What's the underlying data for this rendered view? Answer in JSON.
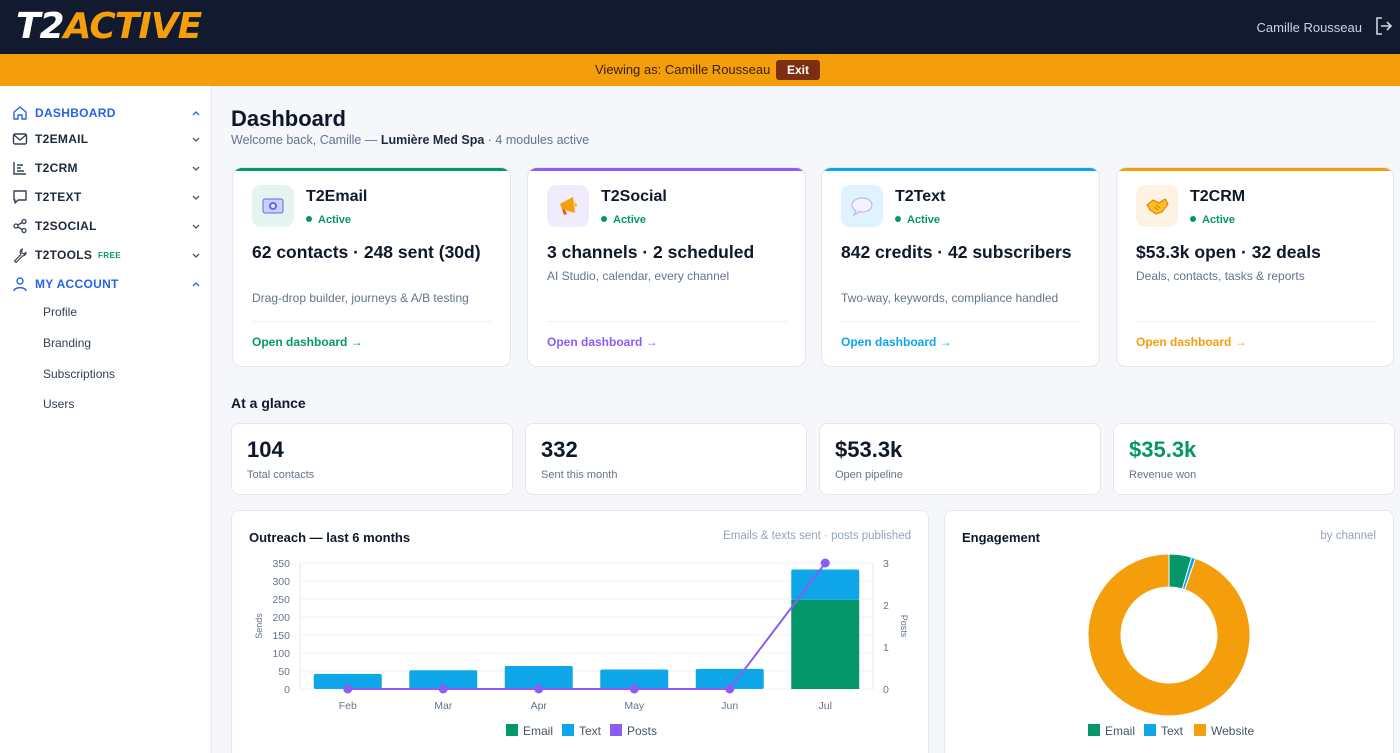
{
  "header": {
    "logo_t2": "T2",
    "logo_active": "ACTIVE",
    "user_name": "Camille Rousseau",
    "logout_icon": "logout-icon"
  },
  "banner": {
    "text": "Viewing as: Camille Rousseau",
    "exit_label": "Exit"
  },
  "sidebar": {
    "items": [
      {
        "label": "DASHBOARD",
        "icon": "home-icon",
        "active": true,
        "expanded": true
      },
      {
        "label": "T2EMAIL",
        "icon": "mail-icon",
        "active": false
      },
      {
        "label": "T2CRM",
        "icon": "crm-icon",
        "active": false
      },
      {
        "label": "T2TEXT",
        "icon": "chat-bubble-icon",
        "active": false
      },
      {
        "label": "T2SOCIAL",
        "icon": "share-icon",
        "active": false
      },
      {
        "label": "T2TOOLS",
        "icon": "wrench-icon",
        "badge": "FREE",
        "active": false
      },
      {
        "label": "MY ACCOUNT",
        "icon": "user-icon",
        "active": true,
        "expanded": true
      }
    ],
    "account_subitems": [
      "Profile",
      "Branding",
      "Subscriptions",
      "Users"
    ]
  },
  "main": {
    "title": "Dashboard",
    "welcome_prefix": "Welcome back, Camille — ",
    "welcome_business": "Lumière Med Spa",
    "welcome_suffix": " · 4 modules active",
    "modules": [
      {
        "name": "T2Email",
        "status": "Active",
        "headline": "62 contacts · 248 sent (30d)",
        "description": "Drag-drop builder, journeys & A/B testing",
        "link": "Open dashboard →",
        "accent": "#059669",
        "icon": "email-module-icon"
      },
      {
        "name": "T2Social",
        "status": "Active",
        "headline": "3 channels · 2 scheduled",
        "description": "AI Studio, calendar, every channel",
        "link": "Open dashboard →",
        "accent": "#8b5cf6",
        "icon": "megaphone-icon"
      },
      {
        "name": "T2Text",
        "status": "Active",
        "headline": "842 credits · 42 subscribers",
        "description": "Two-way, keywords, compliance handled",
        "link": "Open dashboard →",
        "accent": "#0ea5e9",
        "icon": "speech-bubble-icon"
      },
      {
        "name": "T2CRM",
        "status": "Active",
        "headline": "$53.3k open · 32 deals",
        "description": "Deals, contacts, tasks & reports",
        "link": "Open dashboard →",
        "accent": "#f59e0b",
        "icon": "handshake-icon"
      }
    ],
    "glance_title": "At a glance",
    "stats": [
      {
        "value": "104",
        "label": "Total contacts",
        "color": "#0f172a"
      },
      {
        "value": "332",
        "label": "Sent this month",
        "color": "#0f172a"
      },
      {
        "value": "$53.3k",
        "label": "Open pipeline",
        "color": "#0f172a"
      },
      {
        "value": "$35.3k",
        "label": "Revenue won",
        "color": "#059669"
      }
    ],
    "outreach": {
      "title": "Outreach — last 6 months",
      "subtitle": "Emails & texts sent · posts published"
    },
    "engagement": {
      "title": "Engagement",
      "subtitle": "by channel"
    }
  },
  "chart_data": [
    {
      "type": "bar",
      "title": "Outreach — last 6 months",
      "categories": [
        "Feb",
        "Mar",
        "Apr",
        "May",
        "Jun",
        "Jul"
      ],
      "stacked": true,
      "ylabel": "Sends",
      "ylim": [
        0,
        350
      ],
      "yticks": [
        0,
        50,
        100,
        150,
        200,
        250,
        300,
        350
      ],
      "y2label": "Posts",
      "y2lim": [
        0,
        3
      ],
      "y2ticks": [
        0,
        1,
        2,
        3
      ],
      "series": [
        {
          "name": "Email",
          "color": "#059669",
          "values": [
            0,
            0,
            0,
            0,
            0,
            248
          ]
        },
        {
          "name": "Text",
          "color": "#0ea5e9",
          "values": [
            42,
            52,
            64,
            54,
            56,
            84
          ]
        },
        {
          "name": "Posts",
          "color": "#8b5cf6",
          "type": "line",
          "axis": "right",
          "values": [
            0,
            0,
            0,
            0,
            0,
            3
          ]
        }
      ],
      "legend": "bottom"
    },
    {
      "type": "pie",
      "title": "Engagement",
      "donut": true,
      "labels": [
        "Email",
        "Text",
        "Website"
      ],
      "values": [
        4.5,
        0.8,
        94.7
      ],
      "colors": [
        "#059669",
        "#0ea5e9",
        "#f59e0b"
      ],
      "legend": "bottom"
    }
  ]
}
